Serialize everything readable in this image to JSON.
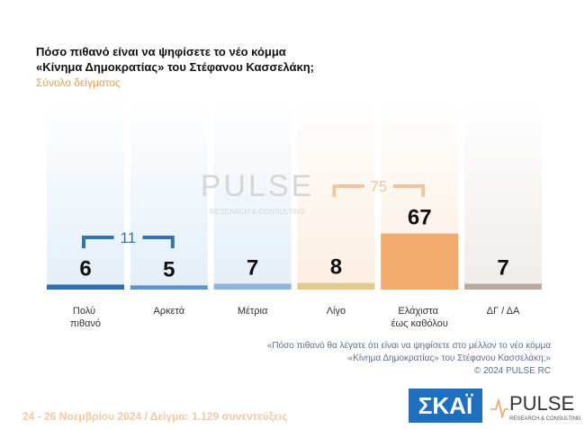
{
  "chart_data": {
    "type": "bar",
    "title_lines": [
      "Πόσο πιθανό είναι να ψηφίσετε το νέο κόμμα",
      "«Κίνημα Δημοκρατίας» του Στέφανου Κασσελάκη;"
    ],
    "subtitle": "Σύνολο δείγματος",
    "categories": [
      "Πολύ πιθανό",
      "Αρκετά",
      "Μέτρια",
      "Λίγο",
      "Ελάχιστα έως καθόλου",
      "ΔΓ / ΔΑ"
    ],
    "values": [
      6,
      5,
      7,
      8,
      67,
      7
    ],
    "colors": [
      "#2f6db3",
      "#5b93cf",
      "#8fb6e0",
      "#e2c98f",
      "#f2ab6c",
      "#b9aa9c"
    ],
    "groups": [
      {
        "value": 11,
        "color": "#2e75b6"
      },
      {
        "value": 75,
        "color": "#f3c59b"
      }
    ],
    "note_lines": [
      "«Πόσο πιθανό θα λέγατε ότι είναι να ψηφίσετε στο μέλλον το νέο κόμμα",
      "«Κίνημα Δημοκρατίας» του Στέφανου Κασσελάκη;»"
    ],
    "copyright": "© 2024 PULSE RC",
    "footer": "24 - 26 Νοεμβρίου 2024 / Δείγμα: 1.129 συνεντεύξεις",
    "watermark": {
      "name": "PULSE",
      "tagline": "RESEARCH & CONSULTING"
    }
  },
  "logos": {
    "skai": "ΣΚΑΪ",
    "pulse": "PULSE",
    "pulse_tagline": "RESEARCH & CONSULTING"
  }
}
